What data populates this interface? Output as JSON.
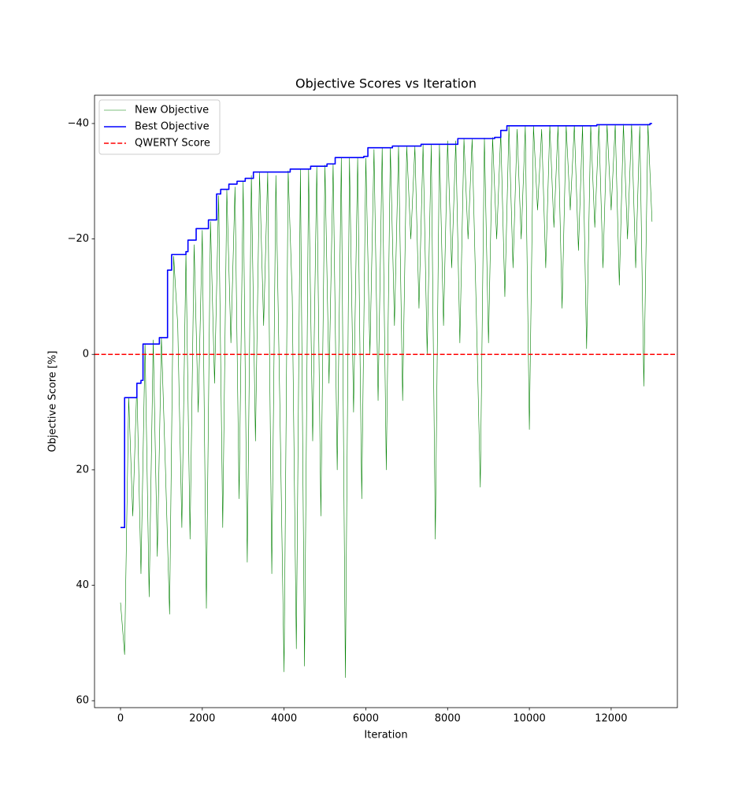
{
  "chart_data": {
    "type": "line",
    "title": "Objective Scores vs Iteration",
    "xlabel": "Iteration",
    "ylabel": "Objective Score [%]",
    "xlim": [
      -636,
      13620
    ],
    "ylim": [
      61.2,
      -44.9
    ],
    "xticks": [
      0,
      2000,
      4000,
      6000,
      8000,
      10000,
      12000
    ],
    "yticks": [
      {
        "value": -40,
        "label": "−40"
      },
      {
        "value": -20,
        "label": "−20"
      },
      0,
      20,
      40,
      60
    ],
    "grid": false,
    "legend": "upper left",
    "series": [
      {
        "name": "New Objective",
        "color": "#008000",
        "width": 0.6,
        "x": [
          0,
          100,
          200,
          300,
          400,
          500,
          600,
          700,
          800,
          900,
          1000,
          1100,
          1200,
          1300,
          1400,
          1500,
          1600,
          1700,
          1800,
          1900,
          2000,
          2100,
          2200,
          2300,
          2400,
          2500,
          2600,
          2700,
          2800,
          2900,
          3000,
          3100,
          3200,
          3300,
          3400,
          3500,
          3600,
          3700,
          3800,
          3900,
          4000,
          4100,
          4200,
          4300,
          4400,
          4500,
          4600,
          4700,
          4800,
          4900,
          5000,
          5100,
          5200,
          5300,
          5400,
          5500,
          5600,
          5700,
          5800,
          5900,
          6000,
          6100,
          6200,
          6300,
          6400,
          6500,
          6600,
          6700,
          6800,
          6900,
          7000,
          7100,
          7200,
          7300,
          7400,
          7500,
          7600,
          7700,
          7800,
          7900,
          8000,
          8100,
          8200,
          8300,
          8400,
          8500,
          8600,
          8700,
          8800,
          8900,
          9000,
          9100,
          9200,
          9300,
          9400,
          9500,
          9600,
          9700,
          9800,
          9900,
          10000,
          10100,
          10200,
          10300,
          10400,
          10500,
          10600,
          10700,
          10800,
          10900,
          11000,
          11100,
          11200,
          11300,
          11400,
          11500,
          11600,
          11700,
          11800,
          11900,
          12000,
          12100,
          12200,
          12300,
          12400,
          12500,
          12600,
          12700,
          12800,
          12900,
          13000
        ],
        "values": [
          43,
          52,
          7.5,
          28,
          5,
          38,
          -1.8,
          42,
          -2.5,
          35,
          -2.9,
          20,
          45,
          -17,
          -5,
          30,
          -17.5,
          32,
          -19,
          10,
          -21.5,
          44,
          -23,
          5,
          -27.5,
          30,
          -28.5,
          -2,
          -29,
          25,
          -30,
          36,
          -31,
          15,
          -31.5,
          -5,
          -31.5,
          38,
          -31,
          10,
          55,
          -31.8,
          -10,
          51,
          -32,
          54,
          -32,
          15,
          -32.5,
          28,
          -32.8,
          5,
          -33,
          20,
          -34,
          56,
          -34,
          10,
          -34,
          25,
          -34,
          0,
          -35.5,
          8,
          -35.8,
          20,
          -35.8,
          -5,
          -36,
          8,
          -36,
          -20,
          -36,
          -8,
          -36.3,
          0,
          -36.3,
          32,
          -36.4,
          -5,
          -37,
          -15,
          -37,
          -2,
          -37.3,
          -20,
          -37.3,
          -8,
          23,
          -37.5,
          -2,
          -37.6,
          -20,
          -38.5,
          -10,
          -39.6,
          -15,
          -39,
          -20,
          -39.5,
          13,
          -39.6,
          -25,
          -39,
          -15,
          -39.7,
          -22,
          -39.5,
          -8,
          -39.6,
          -25,
          -39.7,
          -18,
          -39.6,
          -1,
          -39.7,
          -22,
          -39.8,
          -15,
          -39.8,
          -25,
          -39.8,
          -12,
          -39.9,
          -20,
          -39.9,
          -15,
          -39.5,
          5.5,
          -39.9,
          -23
        ]
      },
      {
        "name": "Best Objective",
        "color": "#0000ff",
        "width": 1.6,
        "x": [
          0,
          100,
          100,
          400,
          400,
          500,
          500,
          550,
          550,
          950,
          950,
          1150,
          1150,
          1250,
          1250,
          1600,
          1600,
          1650,
          1650,
          1850,
          1850,
          2150,
          2150,
          2350,
          2350,
          2450,
          2450,
          2650,
          2650,
          2850,
          2850,
          3050,
          3050,
          3250,
          3250,
          4150,
          4150,
          4650,
          4650,
          5050,
          5050,
          5250,
          5250,
          5950,
          5950,
          6050,
          6050,
          6650,
          6650,
          7350,
          7350,
          8250,
          8250,
          9150,
          9150,
          9300,
          9300,
          9450,
          9450,
          11650,
          11650,
          12950,
          12950,
          13000
        ],
        "values": [
          30,
          30,
          7.5,
          7.5,
          5,
          5,
          4.5,
          4.5,
          -1.8,
          -1.8,
          -2.9,
          -2.9,
          -14.6,
          -14.6,
          -17.3,
          -17.3,
          -17.8,
          -17.8,
          -19.8,
          -19.8,
          -21.8,
          -21.8,
          -23.3,
          -23.3,
          -27.8,
          -27.8,
          -28.6,
          -28.6,
          -29.5,
          -29.5,
          -30,
          -30,
          -30.5,
          -30.5,
          -31.6,
          -31.6,
          -32.1,
          -32.1,
          -32.6,
          -32.6,
          -33,
          -33,
          -34.1,
          -34.1,
          -34.3,
          -34.3,
          -35.8,
          -35.8,
          -36.1,
          -36.1,
          -36.4,
          -36.4,
          -37.4,
          -37.4,
          -37.6,
          -37.6,
          -38.8,
          -38.8,
          -39.6,
          -39.6,
          -39.8,
          -39.8,
          -40,
          -40
        ]
      },
      {
        "name": "QWERTY Score",
        "color": "#ff0000",
        "width": 1.6,
        "type": "hline",
        "dashed": true,
        "values": [
          0
        ]
      }
    ]
  }
}
